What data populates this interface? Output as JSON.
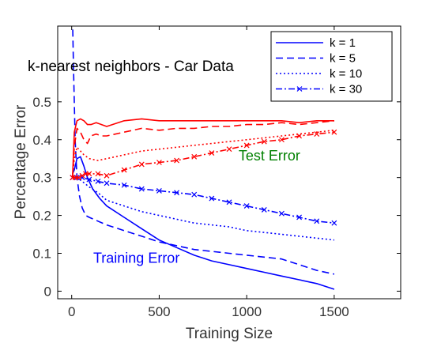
{
  "chart_data": {
    "type": "line",
    "title": "k-nearest neighbors - Car Data",
    "xlabel": "Training Size",
    "ylabel": "Percentage Error",
    "xlim": [
      -80,
      1880
    ],
    "ylim": [
      -0.02,
      0.7
    ],
    "xticks": [
      0,
      500,
      1000,
      1500
    ],
    "yticks": [
      0,
      0.1,
      0.2,
      0.3,
      0.4,
      0.5
    ],
    "xtick_labels": [
      "0",
      "500",
      "1000",
      "1500"
    ],
    "ytick_labels": [
      "0",
      "0.1",
      "0.2",
      "0.3",
      "0.4",
      "0.5"
    ],
    "grid": false,
    "legend_position": "top-right",
    "colors": {
      "training": "#0000ff",
      "test": "#ff0000",
      "annotation_test": "#008000"
    },
    "annotations": [
      {
        "text": "Test Error",
        "x": 1130,
        "y": 0.345,
        "color": "#008000"
      },
      {
        "text": "Training Error",
        "x": 370,
        "y": 0.075,
        "color": "#0000ff"
      }
    ],
    "series": [
      {
        "name": "k = 1",
        "dash": "solid",
        "markers": false,
        "color": "#0000ff",
        "x": [
          5,
          15,
          30,
          50,
          70,
          90,
          120,
          160,
          200,
          300,
          400,
          500,
          600,
          700,
          800,
          900,
          1000,
          1100,
          1200,
          1300,
          1400,
          1500
        ],
        "y": [
          0.31,
          0.32,
          0.35,
          0.355,
          0.33,
          0.3,
          0.27,
          0.245,
          0.225,
          0.195,
          0.165,
          0.135,
          0.115,
          0.095,
          0.08,
          0.07,
          0.06,
          0.05,
          0.04,
          0.03,
          0.02,
          0.005
        ]
      },
      {
        "name": "k = 5",
        "dash": "dash",
        "markers": false,
        "color": "#0000ff",
        "x": [
          5,
          10,
          20,
          30,
          45,
          60,
          80,
          100,
          150,
          200,
          300,
          400,
          500,
          600,
          700,
          800,
          900,
          1000,
          1100,
          1200,
          1300,
          1400,
          1500
        ],
        "y": [
          0.72,
          0.6,
          0.4,
          0.3,
          0.25,
          0.22,
          0.2,
          0.195,
          0.185,
          0.175,
          0.16,
          0.145,
          0.13,
          0.12,
          0.11,
          0.105,
          0.1,
          0.095,
          0.09,
          0.085,
          0.07,
          0.055,
          0.045
        ]
      },
      {
        "name": "k = 10",
        "dash": "dot",
        "markers": false,
        "color": "#0000ff",
        "x": [
          5,
          30,
          60,
          100,
          150,
          200,
          300,
          400,
          500,
          600,
          700,
          800,
          900,
          1000,
          1100,
          1200,
          1300,
          1400,
          1500
        ],
        "y": [
          0.3,
          0.3,
          0.29,
          0.275,
          0.26,
          0.24,
          0.225,
          0.21,
          0.2,
          0.19,
          0.18,
          0.175,
          0.17,
          0.16,
          0.155,
          0.15,
          0.145,
          0.14,
          0.135
        ]
      },
      {
        "name": "k = 30",
        "dash": "dashdot",
        "markers": true,
        "color": "#0000ff",
        "x": [
          5,
          30,
          60,
          100,
          150,
          200,
          300,
          400,
          500,
          600,
          700,
          800,
          900,
          1000,
          1100,
          1200,
          1300,
          1400,
          1500
        ],
        "y": [
          0.3,
          0.3,
          0.3,
          0.295,
          0.29,
          0.285,
          0.28,
          0.27,
          0.265,
          0.26,
          0.255,
          0.245,
          0.235,
          0.225,
          0.215,
          0.205,
          0.195,
          0.185,
          0.18
        ]
      },
      {
        "name": "",
        "dash": "solid",
        "markers": false,
        "color": "#ff0000",
        "x": [
          5,
          15,
          30,
          50,
          70,
          90,
          110,
          140,
          170,
          200,
          300,
          400,
          500,
          600,
          700,
          800,
          900,
          1000,
          1100,
          1200,
          1300,
          1400,
          1500
        ],
        "y": [
          0.3,
          0.42,
          0.45,
          0.455,
          0.45,
          0.44,
          0.44,
          0.445,
          0.44,
          0.435,
          0.45,
          0.455,
          0.45,
          0.45,
          0.45,
          0.45,
          0.45,
          0.45,
          0.45,
          0.45,
          0.445,
          0.45,
          0.45
        ]
      },
      {
        "name": "",
        "dash": "dash",
        "markers": false,
        "color": "#ff0000",
        "x": [
          5,
          15,
          30,
          50,
          70,
          90,
          110,
          140,
          170,
          200,
          300,
          400,
          500,
          600,
          700,
          800,
          900,
          1000,
          1100,
          1200,
          1300,
          1400,
          1500
        ],
        "y": [
          0.3,
          0.38,
          0.43,
          0.42,
          0.4,
          0.39,
          0.41,
          0.415,
          0.41,
          0.41,
          0.42,
          0.43,
          0.425,
          0.43,
          0.43,
          0.435,
          0.435,
          0.44,
          0.44,
          0.445,
          0.44,
          0.445,
          0.45
        ]
      },
      {
        "name": "",
        "dash": "dot",
        "markers": false,
        "color": "#ff0000",
        "x": [
          5,
          15,
          30,
          50,
          70,
          100,
          150,
          200,
          300,
          400,
          500,
          600,
          700,
          800,
          900,
          1000,
          1100,
          1200,
          1300,
          1400,
          1500
        ],
        "y": [
          0.3,
          0.35,
          0.38,
          0.37,
          0.36,
          0.35,
          0.345,
          0.35,
          0.36,
          0.37,
          0.375,
          0.38,
          0.385,
          0.39,
          0.395,
          0.4,
          0.405,
          0.41,
          0.415,
          0.42,
          0.425
        ]
      },
      {
        "name": "",
        "dash": "dashdot",
        "markers": true,
        "color": "#ff0000",
        "x": [
          5,
          20,
          40,
          60,
          80,
          100,
          150,
          200,
          300,
          400,
          500,
          600,
          700,
          800,
          900,
          1000,
          1100,
          1200,
          1300,
          1400,
          1500
        ],
        "y": [
          0.3,
          0.3,
          0.3,
          0.305,
          0.31,
          0.31,
          0.31,
          0.305,
          0.32,
          0.335,
          0.34,
          0.345,
          0.355,
          0.365,
          0.375,
          0.385,
          0.395,
          0.4,
          0.41,
          0.415,
          0.42
        ]
      }
    ]
  }
}
